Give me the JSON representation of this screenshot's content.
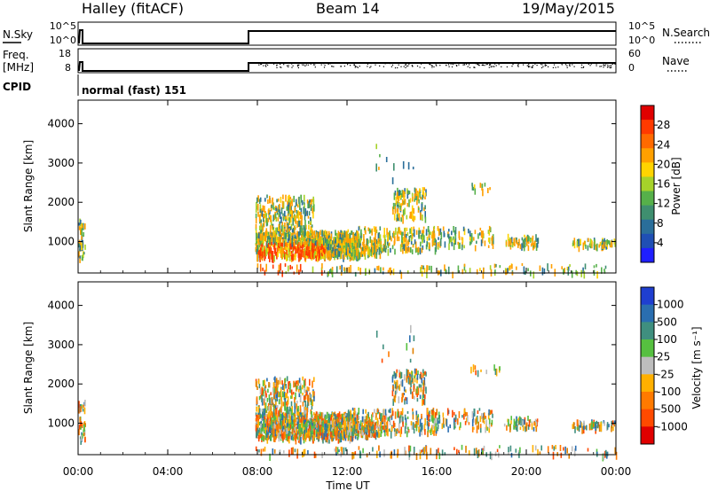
{
  "header": {
    "station": "Halley (fitACF)",
    "beam": "Beam 14",
    "date": "19/May/2015"
  },
  "strips": {
    "sky_label": "N.Sky",
    "sky_ticks": [
      "10^5",
      "10^0"
    ],
    "search_label": "N.Search",
    "search_ticks": [
      "10^5",
      "10^0"
    ],
    "freq_label_1": "Freq.",
    "freq_label_2": "[MHz]",
    "freq_ticks": [
      "18",
      "8"
    ],
    "nave_label": "Nave",
    "nave_ticks": [
      "60",
      "0"
    ],
    "cpid_label": "CPID",
    "cpid_value": "normal (fast) 151"
  },
  "chart_data": [
    {
      "type": "heatmap",
      "title": "Power",
      "ylabel": "Slant Range [km]",
      "xlabel": "Time UT",
      "ylim": [
        200,
        4600
      ],
      "yticks": [
        "1000",
        "2000",
        "3000",
        "4000"
      ],
      "xticks": [
        "00:00",
        "04:00",
        "08:00",
        "12:00",
        "16:00",
        "20:00",
        "00:00"
      ],
      "colorbar_label": "Power [dB]",
      "colorbar_ticks": [
        "4",
        "8",
        "12",
        "16",
        "20",
        "24",
        "28"
      ],
      "colorbar_colors": [
        "#1f1fff",
        "#1f4fb4",
        "#2a6e9a",
        "#3f8f6f",
        "#56b04a",
        "#a6d22a",
        "#ffd400",
        "#ffa000",
        "#ff6a00",
        "#ff3a00",
        "#e00000"
      ]
    },
    {
      "type": "heatmap",
      "title": "Velocity",
      "ylabel": "Slant Range [km]",
      "xlabel": "Time UT",
      "ylim": [
        200,
        4600
      ],
      "yticks": [
        "1000",
        "2000",
        "3000",
        "4000"
      ],
      "xticks": [
        "00:00",
        "04:00",
        "08:00",
        "12:00",
        "16:00",
        "20:00",
        "00:00"
      ],
      "colorbar_label": "Velocity [m s⁻¹]",
      "colorbar_ticks": [
        "1000",
        "500",
        "100",
        "25",
        "-25",
        "-100",
        "-500",
        "-1000"
      ],
      "colorbar_colors": [
        "#1f3fd0",
        "#2a6eb0",
        "#3f8f7f",
        "#56c040",
        "#bdbdbd",
        "#ffb000",
        "#ff7a00",
        "#ff4a00",
        "#e00000"
      ]
    }
  ]
}
